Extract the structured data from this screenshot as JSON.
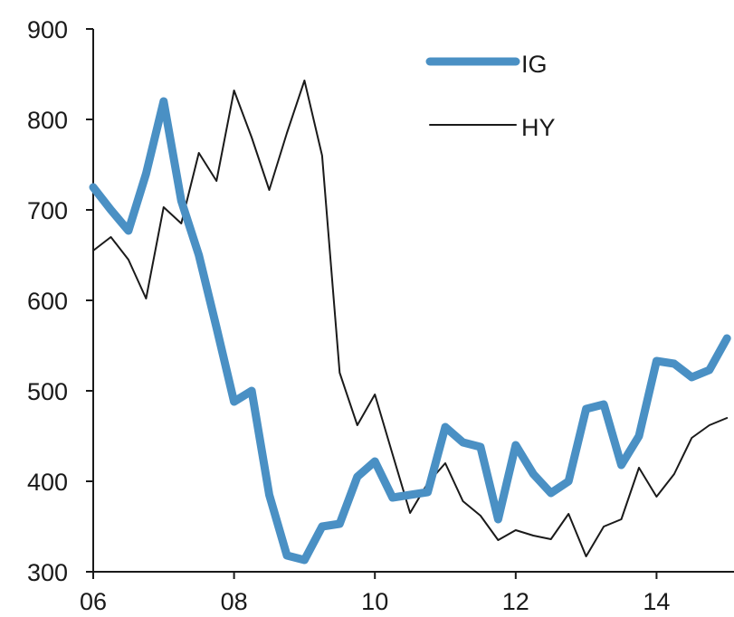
{
  "chart_data": {
    "type": "line",
    "title": "",
    "xlabel": "",
    "ylabel": "",
    "xlim": [
      2006,
      2015.1
    ],
    "ylim": [
      300,
      900
    ],
    "xticks": [
      {
        "value": 2006,
        "label": "06"
      },
      {
        "value": 2008,
        "label": "08"
      },
      {
        "value": 2010,
        "label": "10"
      },
      {
        "value": 2012,
        "label": "12"
      },
      {
        "value": 2014,
        "label": "14"
      }
    ],
    "yticks": [
      300,
      400,
      500,
      600,
      700,
      800,
      900
    ],
    "grid": false,
    "legend": "top-center",
    "series": [
      {
        "name": "IG",
        "color": "#4a90c4",
        "style": "thick",
        "x": [
          2006.0,
          2006.25,
          2006.5,
          2006.75,
          2007.0,
          2007.25,
          2007.5,
          2007.75,
          2008.0,
          2008.25,
          2008.5,
          2008.75,
          2009.0,
          2009.25,
          2009.5,
          2009.75,
          2010.0,
          2010.25,
          2010.5,
          2010.75,
          2011.0,
          2011.25,
          2011.5,
          2011.75,
          2012.0,
          2012.25,
          2012.5,
          2012.75,
          2013.0,
          2013.25,
          2013.5,
          2013.75,
          2014.0,
          2014.25,
          2014.5,
          2014.75,
          2015.0
        ],
        "values": [
          725,
          700,
          677,
          740,
          820,
          710,
          650,
          570,
          488,
          500,
          385,
          318,
          313,
          350,
          353,
          405,
          422,
          382,
          385,
          388,
          460,
          443,
          438,
          358,
          440,
          408,
          387,
          400,
          480,
          485,
          418,
          450,
          533,
          530,
          515,
          523,
          558
        ]
      },
      {
        "name": "HY",
        "color": "#1a1a1a",
        "style": "thin",
        "x": [
          2006.0,
          2006.25,
          2006.5,
          2006.75,
          2007.0,
          2007.25,
          2007.5,
          2007.75,
          2008.0,
          2008.25,
          2008.5,
          2008.75,
          2009.0,
          2009.25,
          2009.5,
          2009.75,
          2010.0,
          2010.25,
          2010.5,
          2010.75,
          2011.0,
          2011.25,
          2011.5,
          2011.75,
          2012.0,
          2012.25,
          2012.5,
          2012.75,
          2013.0,
          2013.25,
          2013.5,
          2013.75,
          2014.0,
          2014.25,
          2014.5,
          2014.75,
          2015.0
        ],
        "values": [
          655,
          670,
          645,
          602,
          703,
          685,
          763,
          732,
          832,
          780,
          722,
          785,
          843,
          760,
          520,
          462,
          496,
          430,
          365,
          398,
          420,
          378,
          362,
          335,
          346,
          340,
          336,
          364,
          317,
          350,
          358,
          415,
          383,
          408,
          448,
          462,
          470
        ]
      }
    ]
  }
}
